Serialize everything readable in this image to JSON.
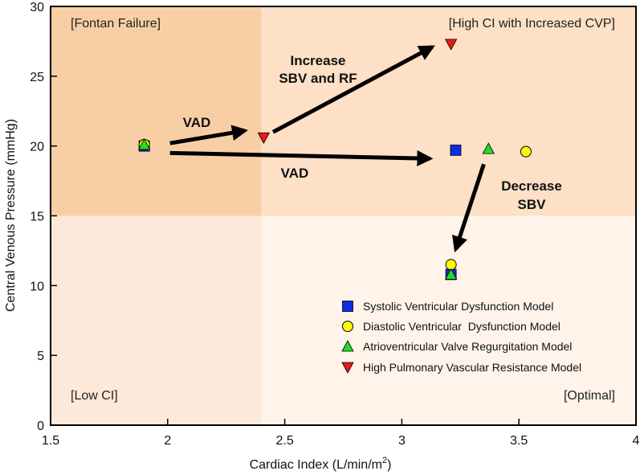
{
  "chart_data": {
    "type": "scatter",
    "xlabel": "Cardiac Index (L/min/m",
    "xlabel_sup": "2",
    "xlabel_end": ")",
    "ylabel": "Central Venous Pressure (mmHg)",
    "xlim": [
      1.5,
      4
    ],
    "ylim": [
      0,
      30
    ],
    "xticks": [
      1.5,
      2,
      2.5,
      3,
      3.5,
      4
    ],
    "yticks": [
      0,
      5,
      10,
      15,
      20,
      25,
      30
    ],
    "xtick_labels": [
      "1.5",
      "2",
      "2.5",
      "3",
      "3.5",
      "4"
    ],
    "ytick_labels": [
      "0",
      "5",
      "10",
      "15",
      "20",
      "25",
      "30"
    ],
    "thresholds": {
      "ci": 2.4,
      "cvp": 15
    },
    "regions": [
      {
        "name": "fontan-failure",
        "x": [
          1.5,
          2.4
        ],
        "y": [
          15,
          30
        ],
        "color": "#f8cfa4"
      },
      {
        "name": "high-ci-high-cvp",
        "x": [
          2.4,
          4
        ],
        "y": [
          15,
          30
        ],
        "color": "#fde0c5"
      },
      {
        "name": "low-ci",
        "x": [
          1.5,
          2.4
        ],
        "y": [
          0,
          15
        ],
        "color": "#fde9d9"
      },
      {
        "name": "optimal",
        "x": [
          2.4,
          4
        ],
        "y": [
          0,
          15
        ],
        "color": "#fff3ea"
      }
    ],
    "region_labels": {
      "fontan_failure": "[Fontan Failure]",
      "high_ci": "[High CI with Increased CVP]",
      "low_ci": "[Low CI]",
      "optimal": "[Optimal]"
    },
    "series": [
      {
        "name": "Systolic Ventricular Dysfunction Model",
        "marker": "square",
        "color": "#0a2ee6",
        "points": [
          {
            "x": 1.9,
            "y": 20
          },
          {
            "x": 3.23,
            "y": 19.7
          },
          {
            "x": 3.21,
            "y": 10.8
          }
        ]
      },
      {
        "name": "Diastolic Ventricular  Dysfunction Model",
        "marker": "circle",
        "color": "#ffff00",
        "points": [
          {
            "x": 1.9,
            "y": 20.1
          },
          {
            "x": 3.53,
            "y": 19.6
          },
          {
            "x": 3.21,
            "y": 11.5
          }
        ]
      },
      {
        "name": "Atrioventricular Valve Regurgitation Model",
        "marker": "triangle-up",
        "color": "#22dd22",
        "points": [
          {
            "x": 1.9,
            "y": 20.1
          },
          {
            "x": 3.37,
            "y": 19.8
          },
          {
            "x": 3.21,
            "y": 10.8
          }
        ]
      },
      {
        "name": "High Pulmonary Vascular Resistance Model",
        "marker": "triangle-down",
        "color": "#e81a1a",
        "points": [
          {
            "x": 2.41,
            "y": 20.6
          },
          {
            "x": 3.21,
            "y": 27.3
          }
        ]
      }
    ],
    "arrows": [
      {
        "from": {
          "x": 2.01,
          "y": 20.2
        },
        "to": {
          "x": 2.33,
          "y": 21.1
        }
      },
      {
        "from": {
          "x": 2.01,
          "y": 19.5
        },
        "to": {
          "x": 3.12,
          "y": 19.1
        }
      },
      {
        "from": {
          "x": 2.45,
          "y": 21.0
        },
        "to": {
          "x": 3.13,
          "y": 27.1
        }
      },
      {
        "from": {
          "x": 3.35,
          "y": 18.7
        },
        "to": {
          "x": 3.23,
          "y": 12.6
        }
      }
    ],
    "annotations": {
      "vad_upper": "VAD",
      "vad_lower": "VAD",
      "increase_line1": "Increase",
      "increase_line2": "SBV and RF",
      "decrease_line1": "Decrease",
      "decrease_line2": "SBV"
    }
  }
}
